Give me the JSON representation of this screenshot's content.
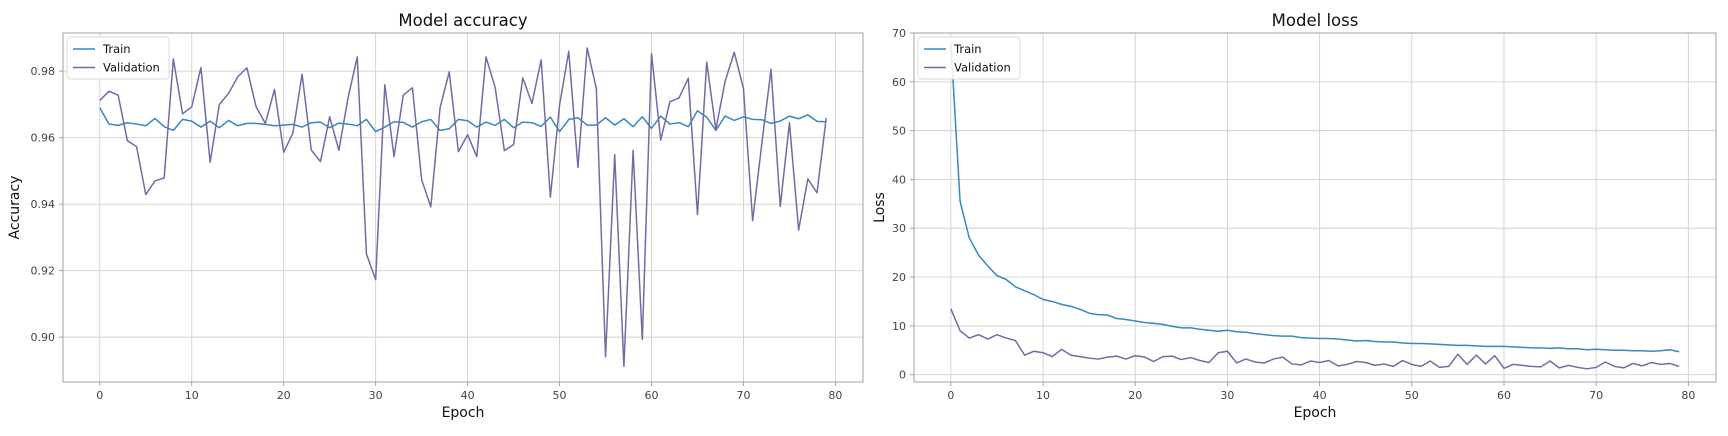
{
  "chart_data": [
    {
      "type": "line",
      "title": "Model accuracy",
      "xlabel": "Epoch",
      "ylabel": "Accuracy",
      "xlim": [
        -4,
        83
      ],
      "ylim": [
        0.8865,
        0.9915
      ],
      "xticks": [
        0,
        10,
        20,
        30,
        40,
        50,
        60,
        70,
        80
      ],
      "yticks": [
        0.9,
        0.92,
        0.94,
        0.96,
        0.98
      ],
      "ytick_labels": [
        "0.90",
        "0.92",
        "0.94",
        "0.96",
        "0.98"
      ],
      "grid": true,
      "legend_position": "top-left",
      "series": [
        {
          "name": "Train",
          "color": "#348ABD",
          "values": [
            0.969,
            0.9641,
            0.9637,
            0.9645,
            0.9641,
            0.9636,
            0.9658,
            0.9633,
            0.9622,
            0.9655,
            0.965,
            0.9632,
            0.965,
            0.963,
            0.9652,
            0.9636,
            0.9643,
            0.9643,
            0.964,
            0.9636,
            0.9638,
            0.964,
            0.9632,
            0.9645,
            0.9647,
            0.963,
            0.9644,
            0.9641,
            0.9636,
            0.9655,
            0.9618,
            0.9632,
            0.9648,
            0.9646,
            0.9632,
            0.9648,
            0.9655,
            0.9622,
            0.9627,
            0.9655,
            0.9651,
            0.9632,
            0.9647,
            0.9637,
            0.9655,
            0.963,
            0.9647,
            0.9645,
            0.9634,
            0.9662,
            0.9618,
            0.9655,
            0.966,
            0.9638,
            0.9638,
            0.966,
            0.9638,
            0.9657,
            0.9633,
            0.9663,
            0.9628,
            0.9665,
            0.9641,
            0.9645,
            0.9633,
            0.9681,
            0.9662,
            0.9622,
            0.9665,
            0.9652,
            0.9663,
            0.9655,
            0.9654,
            0.9643,
            0.965,
            0.9665,
            0.9657,
            0.9669,
            0.9649,
            0.9648
          ]
        },
        {
          "name": "Validation",
          "color": "#7A68A6",
          "values": [
            0.9712,
            0.974,
            0.9728,
            0.9591,
            0.9573,
            0.9429,
            0.947,
            0.9479,
            0.9837,
            0.9672,
            0.9693,
            0.9811,
            0.9526,
            0.97,
            0.9733,
            0.9783,
            0.981,
            0.9693,
            0.9643,
            0.9745,
            0.9556,
            0.9614,
            0.9791,
            0.9563,
            0.9528,
            0.9663,
            0.9562,
            0.972,
            0.9843,
            0.925,
            0.9173,
            0.9759,
            0.9543,
            0.9728,
            0.975,
            0.9474,
            0.9392,
            0.9689,
            0.9798,
            0.9558,
            0.9609,
            0.9543,
            0.9843,
            0.9751,
            0.9561,
            0.9579,
            0.978,
            0.9703,
            0.9834,
            0.9421,
            0.9698,
            0.986,
            0.9511,
            0.987,
            0.9748,
            0.8941,
            0.9549,
            0.8912,
            0.9562,
            0.8993,
            0.9853,
            0.9593,
            0.9708,
            0.972,
            0.9779,
            0.9369,
            0.9827,
            0.9625,
            0.9769,
            0.9857,
            0.9748,
            0.935,
            0.9583,
            0.9806,
            0.9393,
            0.9645,
            0.9322,
            0.9476,
            0.9434,
            0.9659
          ]
        }
      ]
    },
    {
      "type": "line",
      "title": "Model loss",
      "xlabel": "Epoch",
      "ylabel": "Loss",
      "xlim": [
        -4,
        83
      ],
      "ylim": [
        -1.5,
        70
      ],
      "xticks": [
        0,
        10,
        20,
        30,
        40,
        50,
        60,
        70,
        80
      ],
      "yticks": [
        0,
        10,
        20,
        30,
        40,
        50,
        60,
        70
      ],
      "ytick_labels": [
        "0",
        "10",
        "20",
        "30",
        "40",
        "50",
        "60",
        "70"
      ],
      "grid": true,
      "legend_position": "top-left",
      "series": [
        {
          "name": "Train",
          "color": "#348ABD",
          "values": [
            68.0,
            35.5,
            28.0,
            24.5,
            22.3,
            20.3,
            19.5,
            18.0,
            17.2,
            16.4,
            15.4,
            15.0,
            14.4,
            14.0,
            13.4,
            12.6,
            12.3,
            12.2,
            11.5,
            11.3,
            11.0,
            10.7,
            10.5,
            10.3,
            9.9,
            9.6,
            9.6,
            9.3,
            9.1,
            8.9,
            9.1,
            8.8,
            8.7,
            8.4,
            8.2,
            8.0,
            7.9,
            7.9,
            7.6,
            7.5,
            7.4,
            7.4,
            7.3,
            7.1,
            6.9,
            7.0,
            6.8,
            6.7,
            6.7,
            6.5,
            6.4,
            6.4,
            6.3,
            6.2,
            6.1,
            6.0,
            6.0,
            5.9,
            5.8,
            5.8,
            5.8,
            5.7,
            5.6,
            5.5,
            5.5,
            5.4,
            5.5,
            5.3,
            5.3,
            5.1,
            5.2,
            5.1,
            5.0,
            5.0,
            4.9,
            4.9,
            4.8,
            4.9,
            5.1,
            4.7
          ]
        },
        {
          "name": "Validation",
          "color": "#7A68A6",
          "values": [
            13.5,
            9.0,
            7.5,
            8.2,
            7.3,
            8.2,
            7.5,
            7.0,
            4.0,
            4.8,
            4.5,
            3.7,
            5.2,
            4.0,
            3.7,
            3.4,
            3.2,
            3.6,
            3.8,
            3.2,
            3.9,
            3.6,
            2.7,
            3.7,
            3.8,
            3.1,
            3.5,
            2.9,
            2.5,
            4.5,
            4.8,
            2.4,
            3.2,
            2.6,
            2.4,
            3.2,
            3.6,
            2.2,
            2.0,
            2.8,
            2.5,
            2.9,
            1.8,
            2.1,
            2.7,
            2.5,
            1.9,
            2.2,
            1.7,
            2.9,
            2.1,
            1.7,
            2.8,
            1.5,
            1.7,
            4.2,
            2.1,
            4.0,
            2.2,
            3.9,
            1.3,
            2.1,
            1.9,
            1.7,
            1.6,
            2.8,
            1.4,
            1.9,
            1.5,
            1.2,
            1.5,
            2.6,
            1.7,
            1.4,
            2.3,
            1.8,
            2.5,
            2.1,
            2.3,
            1.7
          ]
        }
      ]
    }
  ]
}
